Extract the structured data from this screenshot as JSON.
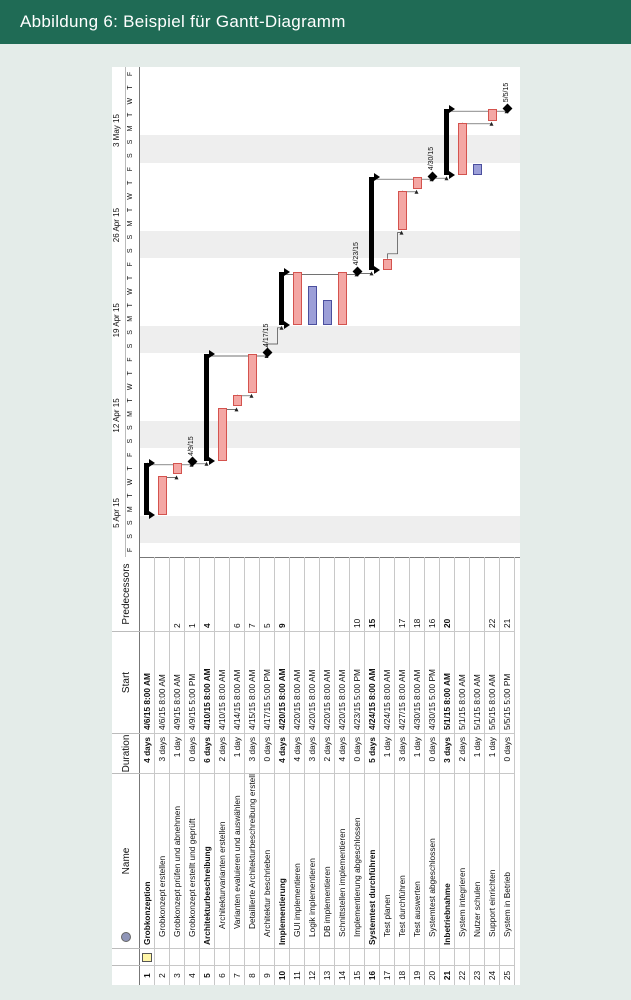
{
  "banner": {
    "title": "Abbildung 6: Beispiel für Gantt-Diagramm"
  },
  "table": {
    "headers": {
      "name": "Name",
      "duration": "Duration",
      "start": "Start",
      "predecessors": "Predecessors"
    },
    "rows": [
      {
        "id": "1",
        "name": "Grobkonzeption",
        "duration": "4 days",
        "start": "4/6/15 8:00 AM",
        "pred": "",
        "summary": true,
        "note": true,
        "indent": 0
      },
      {
        "id": "2",
        "name": "Grobkonzept erstellen",
        "duration": "3 days",
        "start": "4/6/15 8:00 AM",
        "pred": "",
        "summary": false,
        "indent": 1
      },
      {
        "id": "3",
        "name": "Grobkonzept prüfen und abnehmen",
        "duration": "1 day",
        "start": "4/9/15 8:00 AM",
        "pred": "2",
        "summary": false,
        "indent": 1
      },
      {
        "id": "4",
        "name": "Grobkonzept erstellt und geprüft",
        "duration": "0 days",
        "start": "4/9/15 5:00 PM",
        "pred": "1",
        "summary": false,
        "indent": 1
      },
      {
        "id": "5",
        "name": "Architekturbeschreibung",
        "duration": "6 days",
        "start": "4/10/15 8:00 AM",
        "pred": "4",
        "summary": true,
        "indent": 0
      },
      {
        "id": "6",
        "name": "Architekturvarianten erstellen",
        "duration": "2 days",
        "start": "4/10/15 8:00 AM",
        "pred": "",
        "summary": false,
        "indent": 2
      },
      {
        "id": "7",
        "name": "Varianten evaluieren und auswählen",
        "duration": "1 day",
        "start": "4/14/15 8:00 AM",
        "pred": "6",
        "summary": false,
        "indent": 2
      },
      {
        "id": "8",
        "name": "Detaillierte Architekturbeschreibung erstellen",
        "duration": "3 days",
        "start": "4/15/15 8:00 AM",
        "pred": "7",
        "summary": false,
        "indent": 2
      },
      {
        "id": "9",
        "name": "Architektur beschrieben",
        "duration": "0 days",
        "start": "4/17/15 5:00 PM",
        "pred": "5",
        "summary": false,
        "indent": 1
      },
      {
        "id": "10",
        "name": "Implementierung",
        "duration": "4 days",
        "start": "4/20/15 8:00 AM",
        "pred": "9",
        "summary": true,
        "indent": 0
      },
      {
        "id": "11",
        "name": "GUI implementieren",
        "duration": "4 days",
        "start": "4/20/15 8:00 AM",
        "pred": "",
        "summary": false,
        "indent": 1
      },
      {
        "id": "12",
        "name": "Logik implementieren",
        "duration": "3 days",
        "start": "4/20/15 8:00 AM",
        "pred": "",
        "summary": false,
        "indent": 1
      },
      {
        "id": "13",
        "name": "DB implementieren",
        "duration": "2 days",
        "start": "4/20/15 8:00 AM",
        "pred": "",
        "summary": false,
        "indent": 1
      },
      {
        "id": "14",
        "name": "Schnittstellen implementieren",
        "duration": "4 days",
        "start": "4/20/15 8:00 AM",
        "pred": "",
        "summary": false,
        "indent": 1
      },
      {
        "id": "15",
        "name": "Implementierung abgeschlossen",
        "duration": "0 days",
        "start": "4/23/15 5:00 PM",
        "pred": "10",
        "summary": false,
        "indent": 1
      },
      {
        "id": "16",
        "name": "Systemtest durchführen",
        "duration": "5 days",
        "start": "4/24/15 8:00 AM",
        "pred": "15",
        "summary": true,
        "indent": 0
      },
      {
        "id": "17",
        "name": "Test planen",
        "duration": "1 day",
        "start": "4/24/15 8:00 AM",
        "pred": "",
        "summary": false,
        "indent": 1
      },
      {
        "id": "18",
        "name": "Test durchführen",
        "duration": "3 days",
        "start": "4/27/15 8:00 AM",
        "pred": "17",
        "summary": false,
        "indent": 1
      },
      {
        "id": "19",
        "name": "Test auswerten",
        "duration": "1 day",
        "start": "4/30/15 8:00 AM",
        "pred": "18",
        "summary": false,
        "indent": 1
      },
      {
        "id": "20",
        "name": "Systemtest abgeschlossen",
        "duration": "0 days",
        "start": "4/30/15 5:00 PM",
        "pred": "16",
        "summary": false,
        "indent": 1
      },
      {
        "id": "21",
        "name": "Inbetriebnahme",
        "duration": "3 days",
        "start": "5/1/15 8:00 AM",
        "pred": "20",
        "summary": true,
        "indent": 0
      },
      {
        "id": "22",
        "name": "System integrieren",
        "duration": "2 days",
        "start": "5/1/15 8:00 AM",
        "pred": "",
        "summary": false,
        "indent": 1
      },
      {
        "id": "23",
        "name": "Nutzer schulen",
        "duration": "1 day",
        "start": "5/1/15 8:00 AM",
        "pred": "",
        "summary": false,
        "indent": 1
      },
      {
        "id": "24",
        "name": "Support einrichten",
        "duration": "1 day",
        "start": "5/5/15 8:00 AM",
        "pred": "22",
        "summary": false,
        "indent": 1
      },
      {
        "id": "25",
        "name": "System in Betrieb",
        "duration": "0 days",
        "start": "5/5/15 5:00 PM",
        "pred": "21",
        "summary": false,
        "indent": 1
      }
    ]
  },
  "timescale": {
    "weeks": [
      "5 Apr 15",
      "12 Apr 15",
      "19 Apr 15",
      "26 Apr 15",
      "3 May 15"
    ],
    "day_letters": [
      "F",
      "S",
      "S",
      "M",
      "T",
      "W",
      "T",
      "F",
      "S",
      "S",
      "M",
      "T",
      "W",
      "T",
      "F",
      "S",
      "S",
      "M",
      "T",
      "W",
      "T",
      "F",
      "S",
      "S",
      "M",
      "T",
      "W",
      "T",
      "F",
      "S",
      "S",
      "M",
      "T",
      "W",
      "T",
      "F"
    ]
  },
  "gantt": {
    "first_day_label": "4/3/15",
    "bar_colors": {
      "task": "#f4a7a4",
      "resource_task": "#9c9fd8",
      "summary": "#000000"
    },
    "blue_tasks": [
      "12",
      "13",
      "23"
    ]
  }
}
